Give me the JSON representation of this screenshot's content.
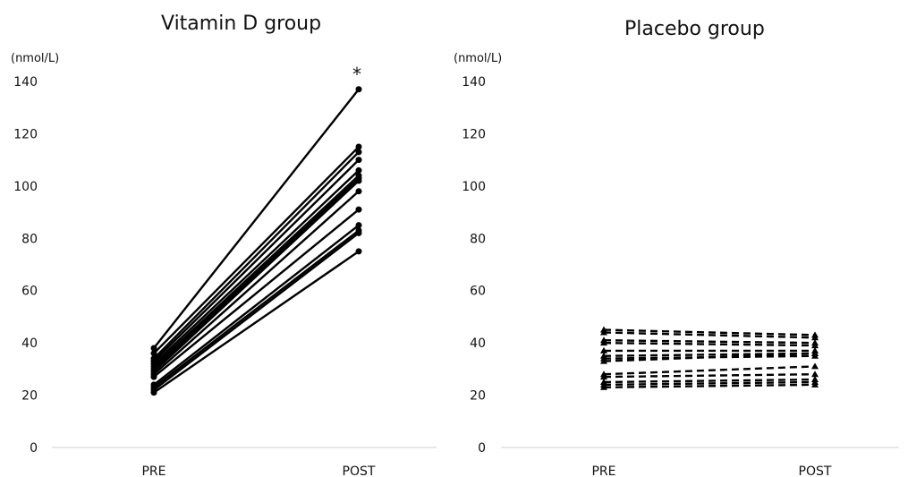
{
  "chart_data": [
    {
      "type": "line",
      "title": "Vitamin D group",
      "unit_label": "(nmol/L)",
      "categories": [
        "PRE",
        "POST"
      ],
      "ylim": [
        0,
        140
      ],
      "yticks": [
        "0",
        "20",
        "40",
        "60",
        "80",
        "100",
        "120",
        "140"
      ],
      "line_style": "solid",
      "marker": "circle",
      "annotation": "*",
      "series": [
        {
          "values": [
            38,
            137
          ]
        },
        {
          "values": [
            36,
            115
          ]
        },
        {
          "values": [
            34,
            113
          ]
        },
        {
          "values": [
            33,
            110
          ]
        },
        {
          "values": [
            32,
            106
          ]
        },
        {
          "values": [
            31,
            104
          ]
        },
        {
          "values": [
            30,
            103
          ]
        },
        {
          "values": [
            29,
            102
          ]
        },
        {
          "values": [
            28,
            98
          ]
        },
        {
          "values": [
            27,
            91
          ]
        },
        {
          "values": [
            24,
            85
          ]
        },
        {
          "values": [
            23,
            83
          ]
        },
        {
          "values": [
            22,
            82
          ]
        },
        {
          "values": [
            21,
            75
          ]
        }
      ]
    },
    {
      "type": "line",
      "title": "Placebo group",
      "unit_label": "(nmol/L)",
      "categories": [
        "PRE",
        "POST"
      ],
      "ylim": [
        0,
        140
      ],
      "yticks": [
        "0",
        "20",
        "40",
        "60",
        "80",
        "100",
        "120",
        "140"
      ],
      "line_style": "dashed",
      "marker": "triangle",
      "series": [
        {
          "values": [
            45,
            43
          ]
        },
        {
          "values": [
            44,
            42
          ]
        },
        {
          "values": [
            41,
            40
          ]
        },
        {
          "values": [
            40,
            39
          ]
        },
        {
          "values": [
            37,
            37
          ]
        },
        {
          "values": [
            35,
            36
          ]
        },
        {
          "values": [
            34,
            35
          ]
        },
        {
          "values": [
            33,
            36
          ]
        },
        {
          "values": [
            28,
            31
          ]
        },
        {
          "values": [
            27,
            28
          ]
        },
        {
          "values": [
            25,
            26
          ]
        },
        {
          "values": [
            24,
            25
          ]
        },
        {
          "values": [
            23,
            24
          ]
        }
      ]
    }
  ]
}
